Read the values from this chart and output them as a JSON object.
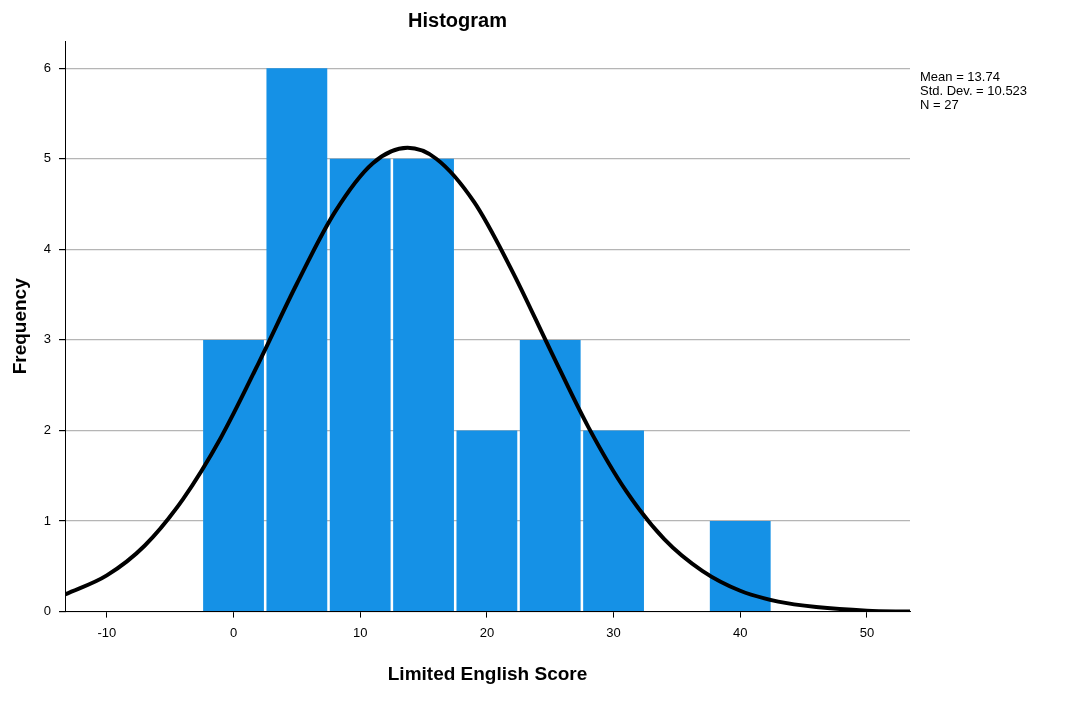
{
  "chart_data": {
    "type": "histogram",
    "title": "Histogram",
    "xlabel": "Limited English Score",
    "ylabel": "Frequency",
    "bins": [
      -2.5,
      2.5,
      7.5,
      12.5,
      17.5,
      22.5,
      27.5,
      32.5,
      37.5,
      42.5
    ],
    "values": [
      3,
      6,
      5,
      5,
      2,
      3,
      2,
      0,
      1
    ],
    "color": "#1591e6",
    "series": [
      {
        "type": "line",
        "color": "#000000",
        "marker": "none",
        "x": [
          -13.3,
          -10,
          -7,
          -4,
          -1,
          2,
          5,
          8,
          11,
          13.74,
          16,
          19,
          22,
          25,
          28,
          31,
          34,
          37,
          40,
          43,
          46,
          50,
          53.4
        ],
        "values": [
          0.19,
          0.4,
          0.73,
          1.24,
          1.92,
          2.75,
          3.62,
          4.41,
          4.95,
          5.12,
          5,
          4.52,
          3.76,
          2.89,
          2.04,
          1.33,
          0.8,
          0.45,
          0.23,
          0.11,
          0.05,
          0.01,
          0
        ]
      }
    ],
    "xlim": [
      -13.3,
      53.4
    ],
    "xticks": [
      -10,
      0,
      10,
      20,
      30,
      40,
      50
    ],
    "ylim": [
      0,
      6.3
    ],
    "yticks": [
      0,
      1,
      2,
      3,
      4,
      5,
      6
    ],
    "grid": "y",
    "legend": false,
    "annotations": [
      "Mean = 13.74",
      "Std. Dev. = 10.523",
      "N = 27"
    ]
  }
}
